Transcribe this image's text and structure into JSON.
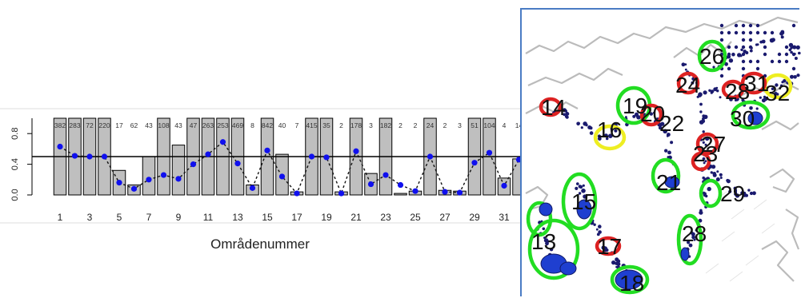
{
  "chart_data": {
    "type": "bar",
    "xlabel": "Områdenummer",
    "ylabel": "",
    "ylim": [
      0,
      1
    ],
    "yticks": [
      "0.0",
      "0.4",
      "0.8"
    ],
    "xticks": [
      "1",
      "3",
      "5",
      "7",
      "9",
      "11",
      "13",
      "15",
      "17",
      "19",
      "21",
      "23",
      "25",
      "27",
      "29",
      "31"
    ],
    "categories": [
      "1",
      "2",
      "3",
      "4",
      "5",
      "6",
      "7",
      "8",
      "9",
      "10",
      "11",
      "12",
      "13",
      "14",
      "15",
      "16",
      "17",
      "18",
      "19",
      "20",
      "21",
      "22",
      "23",
      "24",
      "25",
      "26",
      "27",
      "28",
      "29",
      "30",
      "31",
      "32"
    ],
    "bar_values": [
      1,
      1,
      1,
      1,
      0.32,
      0.13,
      0.5,
      1,
      0.65,
      1,
      1,
      1,
      1,
      0.13,
      1,
      0.53,
      0.04,
      1,
      1,
      0.04,
      1,
      0.28,
      1,
      0.02,
      0.05,
      1,
      0.06,
      0.05,
      1,
      1,
      0.22,
      0.47
    ],
    "point_values": [
      0.63,
      0.51,
      0.5,
      0.5,
      0.16,
      0.08,
      0.2,
      0.26,
      0.21,
      0.4,
      0.53,
      0.69,
      0.41,
      0.09,
      0.58,
      0.24,
      0.02,
      0.5,
      0.49,
      0.02,
      0.57,
      0.14,
      0.26,
      0.13,
      0.05,
      0.5,
      0.04,
      0.03,
      0.42,
      0.55,
      0.12,
      0.46
    ],
    "bar_labels": [
      "382",
      "283",
      "72",
      "220",
      "17",
      "62",
      "43",
      "108",
      "43",
      "47",
      "263",
      "253",
      "469",
      "8",
      "842",
      "40",
      "7",
      "415",
      "35",
      "2",
      "178",
      "3",
      "182",
      "2",
      "2",
      "24",
      "2",
      "3",
      "51",
      "104",
      "4",
      "14"
    ],
    "reference_line": 0.5,
    "grid": false
  },
  "map": {
    "region_labels": [
      {
        "text": "13",
        "color": "#111111",
        "outline": "#22dd22"
      },
      {
        "text": "14",
        "color": "#111111",
        "outline": "#dd2222"
      },
      {
        "text": "15",
        "color": "#111111",
        "outline": "#22dd22"
      },
      {
        "text": "16",
        "color": "#111111",
        "outline": "#eeee22"
      },
      {
        "text": "17",
        "color": "#111111",
        "outline": "#dd2222"
      },
      {
        "text": "18",
        "color": "#111111",
        "outline": "#22dd22"
      },
      {
        "text": "19",
        "color": "#111111",
        "outline": "#22dd22"
      },
      {
        "text": "20",
        "color": "#111111",
        "outline": "#dd2222"
      },
      {
        "text": "21",
        "color": "#111111",
        "outline": "#22dd22"
      },
      {
        "text": "22",
        "color": "#111111",
        "outline": "#dd2222"
      },
      {
        "text": "23",
        "color": "#111111",
        "outline": "#dd2222"
      },
      {
        "text": "24",
        "color": "#111111",
        "outline": "#dd2222"
      },
      {
        "text": "26",
        "color": "#111111",
        "outline": "#22dd22"
      },
      {
        "text": "27",
        "color": "#111111",
        "outline": "#dd2222"
      },
      {
        "text": "28",
        "color": "#111111",
        "outline": "#22dd22"
      },
      {
        "text": "28",
        "color": "#111111",
        "outline": "#dd2222"
      },
      {
        "text": "29",
        "color": "#111111",
        "outline": "#22dd22"
      },
      {
        "text": "30",
        "color": "#111111",
        "outline": "#22dd22"
      },
      {
        "text": "31",
        "color": "#111111",
        "outline": "#dd2222"
      },
      {
        "text": "32",
        "color": "#111111",
        "outline": "#eeee22"
      }
    ],
    "colors": {
      "green": "#22dd22",
      "red": "#dd2222",
      "yellow": "#eeee22",
      "dots": "#1a1a6e",
      "blue": "#1f3fd0",
      "coast": "#bbbbbb"
    }
  }
}
